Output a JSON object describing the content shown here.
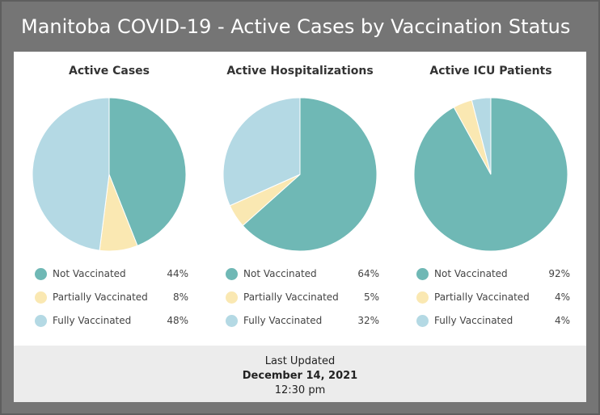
{
  "header": {
    "title": "Manitoba COVID-19 - Active Cases by Vaccination Status"
  },
  "colors": {
    "not_vaccinated": "#6fb8b5",
    "partially_vaccinated": "#fae8b2",
    "fully_vaccinated": "#b4d9e4"
  },
  "chart_data": [
    {
      "type": "pie",
      "title": "Active Cases",
      "categories": [
        "Not Vaccinated",
        "Partially Vaccinated",
        "Fully Vaccinated"
      ],
      "values": [
        44,
        8,
        48
      ],
      "labels": [
        "44%",
        "8%",
        "48%"
      ],
      "legend": "bottom"
    },
    {
      "type": "pie",
      "title": "Active Hospitalizations",
      "categories": [
        "Not Vaccinated",
        "Partially Vaccinated",
        "Fully Vaccinated"
      ],
      "values": [
        64,
        5,
        32
      ],
      "labels": [
        "64%",
        "5%",
        "32%"
      ],
      "legend": "bottom"
    },
    {
      "type": "pie",
      "title": "Active ICU Patients",
      "categories": [
        "Not Vaccinated",
        "Partially Vaccinated",
        "Fully Vaccinated"
      ],
      "values": [
        92,
        4,
        4
      ],
      "labels": [
        "92%",
        "4%",
        "4%"
      ],
      "legend": "bottom"
    }
  ],
  "footer": {
    "label": "Last Updated",
    "date": "December 14, 2021",
    "time": "12:30 pm"
  }
}
